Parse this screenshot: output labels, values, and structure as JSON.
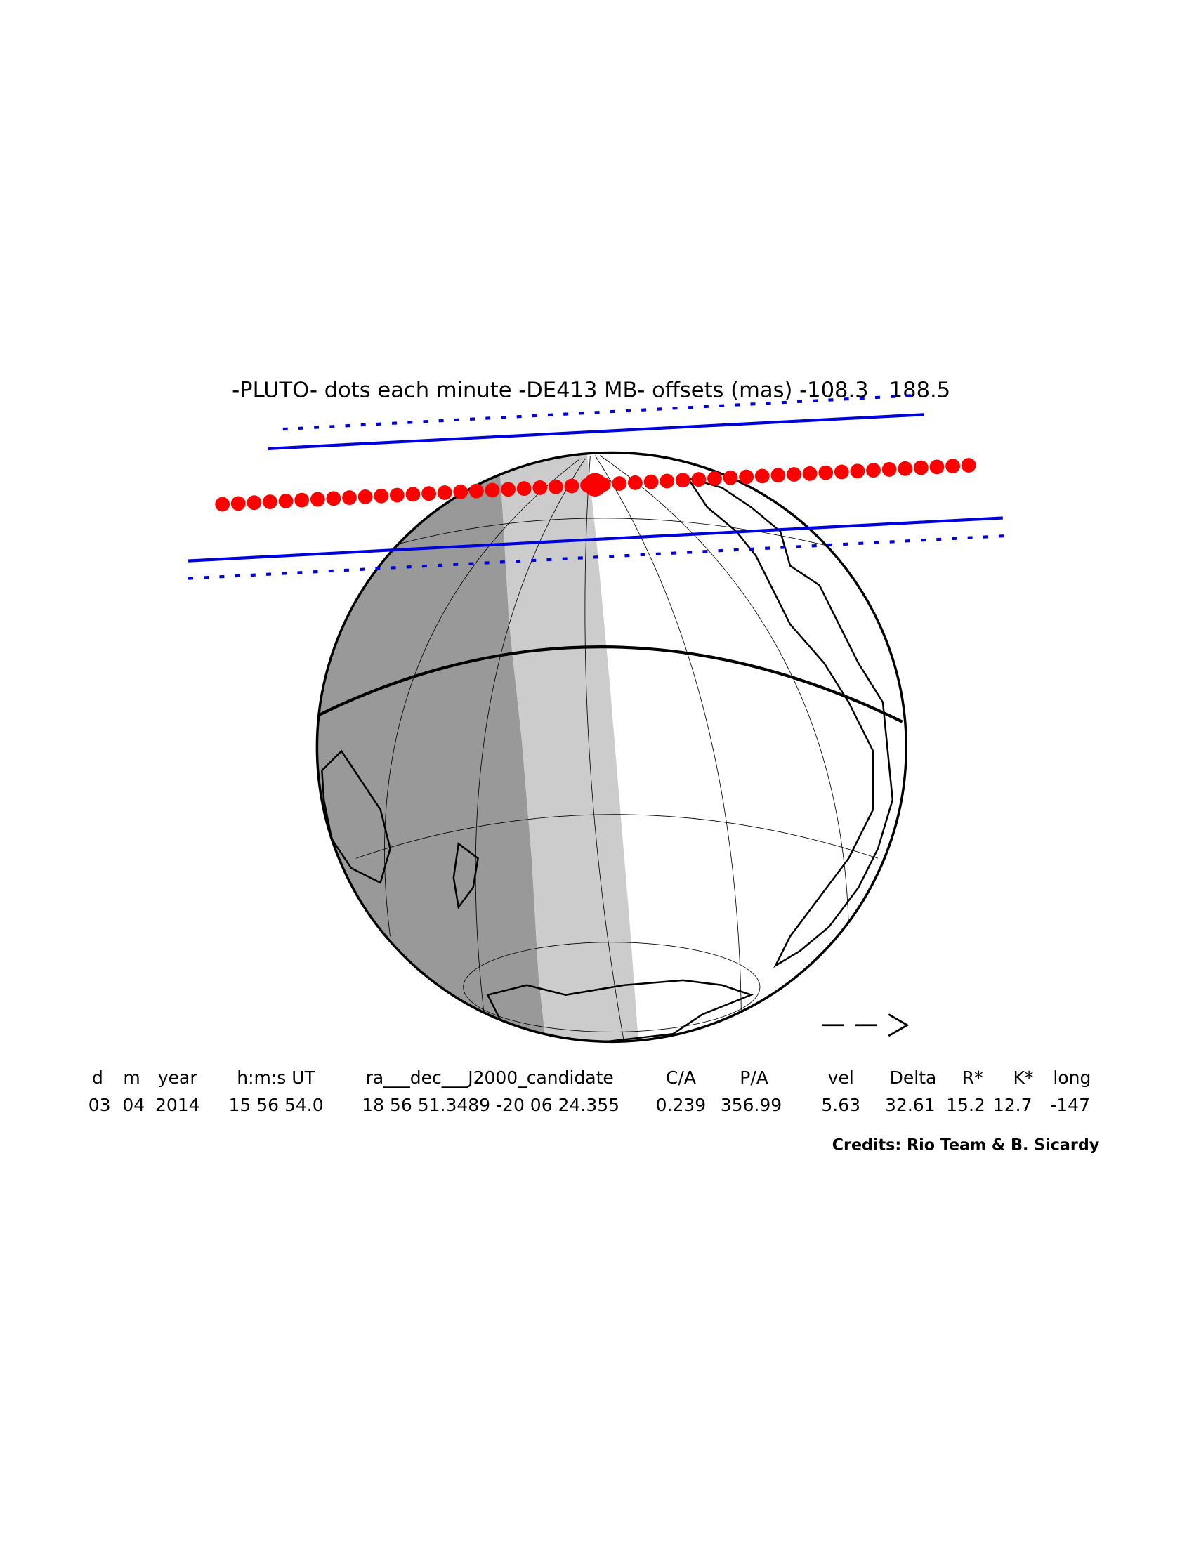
{
  "title": "-PLUTO- dots each minute -DE413 MB- offsets (mas) -108.3   188.5",
  "table": {
    "headers": [
      "d",
      "m",
      "year",
      "h:m:s UT",
      "ra___dec___J2000_candidate",
      "C/A",
      "P/A",
      "vel",
      "Delta",
      "R*",
      "K*",
      "long"
    ],
    "rows": [
      [
        "03",
        "04",
        "2014",
        "15 56 54.0",
        "18 56 51.3489 -20 06 24.355",
        "0.239",
        "356.99",
        "5.63",
        "32.61",
        "15.2",
        "12.7",
        "-147"
      ]
    ]
  },
  "credits": "Credits: Rio Team & B. Sicardy"
}
